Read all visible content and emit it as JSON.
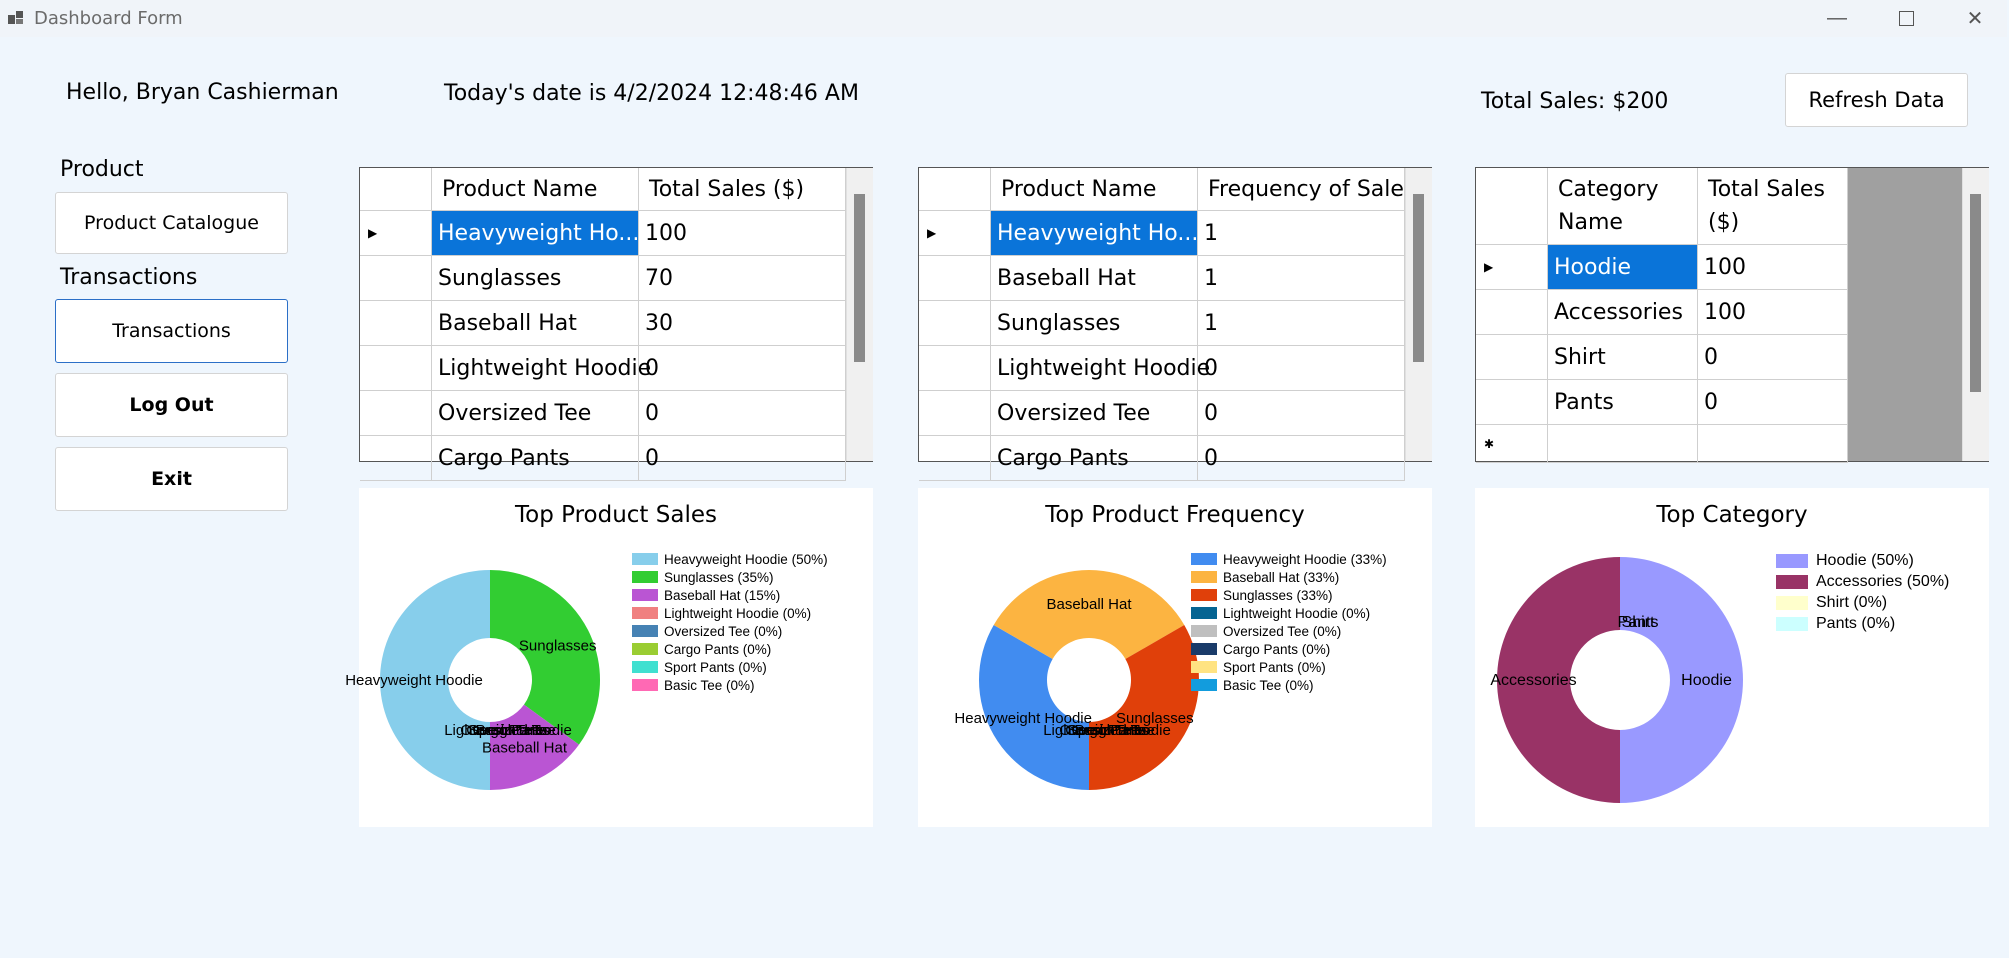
{
  "window": {
    "title": "Dashboard Form"
  },
  "header": {
    "greeting": "Hello, Bryan Cashierman",
    "date_text": "Today's date is 4/2/2024 12:48:46 AM",
    "total_sales": "Total Sales: $200",
    "refresh_label": "Refresh Data"
  },
  "sidebar": {
    "product_heading": "Product",
    "product_catalogue_label": "Product Catalogue",
    "transactions_heading": "Transactions",
    "transactions_label": "Transactions",
    "logout_label": "Log Out",
    "exit_label": "Exit"
  },
  "grid_sales": {
    "headers": [
      "Product Name",
      "Total Sales ($)"
    ],
    "rows": [
      [
        "Heavyweight Ho...",
        "100"
      ],
      [
        "Sunglasses",
        "70"
      ],
      [
        "Baseball Hat",
        "30"
      ],
      [
        "Lightweight Hoodie",
        "0"
      ],
      [
        "Oversized Tee",
        "0"
      ],
      [
        "Cargo Pants",
        "0"
      ]
    ]
  },
  "grid_frequency": {
    "headers": [
      "Product Name",
      "Frequency of Sales"
    ],
    "rows": [
      [
        "Heavyweight Ho...",
        "1"
      ],
      [
        "Baseball Hat",
        "1"
      ],
      [
        "Sunglasses",
        "1"
      ],
      [
        "Lightweight Hoodie",
        "0"
      ],
      [
        "Oversized Tee",
        "0"
      ],
      [
        "Cargo Pants",
        "0"
      ]
    ]
  },
  "grid_category": {
    "headers": [
      "Category Name",
      "Total Sales ($)"
    ],
    "rows": [
      [
        "Hoodie",
        "100"
      ],
      [
        "Accessories",
        "100"
      ],
      [
        "Shirt",
        "0"
      ],
      [
        "Pants",
        "0"
      ]
    ]
  },
  "chart_data": [
    {
      "type": "pie",
      "title": "Top Product Sales",
      "categories": [
        "Heavyweight Hoodie",
        "Sunglasses",
        "Baseball Hat",
        "Lightweight Hoodie",
        "Oversized Tee",
        "Cargo Pants",
        "Sport Pants",
        "Basic Tee"
      ],
      "values": [
        100,
        70,
        30,
        0,
        0,
        0,
        0,
        0
      ],
      "legend": [
        "Heavyweight Hoodie (50%)",
        "Sunglasses (35%)",
        "Baseball Hat (15%)",
        "Lightweight Hoodie (0%)",
        "Oversized Tee (0%)",
        "Cargo Pants (0%)",
        "Sport Pants (0%)",
        "Basic Tee (0%)"
      ],
      "colors": [
        "#87ceeb",
        "#32cd32",
        "#ba55d3",
        "#f08080",
        "#4682b4",
        "#9acd32",
        "#40e0d0",
        "#ff69b4"
      ],
      "legend_position": "right"
    },
    {
      "type": "pie",
      "title": "Top Product Frequency",
      "categories": [
        "Heavyweight Hoodie",
        "Baseball Hat",
        "Sunglasses",
        "Lightweight Hoodie",
        "Oversized Tee",
        "Cargo Pants",
        "Sport Pants",
        "Basic Tee"
      ],
      "values": [
        1,
        1,
        1,
        0,
        0,
        0,
        0,
        0
      ],
      "legend": [
        "Heavyweight Hoodie (33%)",
        "Baseball Hat (33%)",
        "Sunglasses (33%)",
        "Lightweight Hoodie (0%)",
        "Oversized Tee (0%)",
        "Cargo Pants (0%)",
        "Sport Pants (0%)",
        "Basic Tee (0%)"
      ],
      "colors": [
        "#418cf0",
        "#fcb441",
        "#e0400a",
        "#056492",
        "#bfbfbf",
        "#1a3b69",
        "#ffe382",
        "#129cdd"
      ],
      "legend_position": "right"
    },
    {
      "type": "pie",
      "title": "Top Category",
      "categories": [
        "Hoodie",
        "Accessories",
        "Shirt",
        "Pants"
      ],
      "values": [
        100,
        100,
        0,
        0
      ],
      "legend": [
        "Hoodie (50%)",
        "Accessories (50%)",
        "Shirt (0%)",
        "Pants (0%)"
      ],
      "colors": [
        "#9999ff",
        "#993366",
        "#ffffcc",
        "#ccffff"
      ],
      "legend_position": "right"
    }
  ]
}
